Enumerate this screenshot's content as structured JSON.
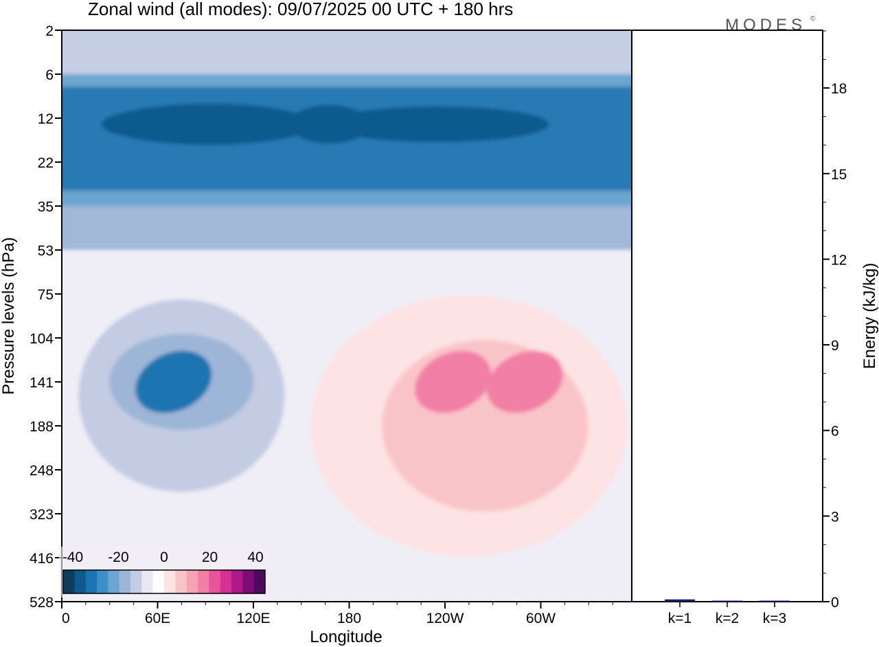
{
  "title": "Zonal wind (all modes):  09/07/2025  00 UTC  + 180 hrs",
  "logo_text": "MODES",
  "logo_mark": "©",
  "chart_data": [
    {
      "type": "heatmap",
      "ylabel": "Pressure levels (hPa)",
      "xlabel": "Longitude",
      "x_ticks": [
        "0",
        "60E",
        "120E",
        "180",
        "120W",
        "60W"
      ],
      "y_ticks": [
        "2",
        "6",
        "12",
        "22",
        "35",
        "53",
        "75",
        "104",
        "141",
        "188",
        "248",
        "323",
        "416",
        "528"
      ],
      "y_scale": "pressure levels (top 2 hPa to bottom 528 hPa)",
      "colorbar": {
        "labels": [
          "-40",
          "-20",
          "0",
          "20",
          "40"
        ],
        "colors": [
          "#0b3d5e",
          "#0e5a8e",
          "#1b74b0",
          "#3a8fc4",
          "#6aa6d0",
          "#9db5d6",
          "#c3cce3",
          "#e8e8f3",
          "#ffffff",
          "#fde3e3",
          "#f9c4c8",
          "#f6a4b4",
          "#f27fa6",
          "#e9559a",
          "#d43193",
          "#b01788",
          "#7d0b78",
          "#4b0a5e"
        ]
      },
      "bands": [
        {
          "from": "2",
          "to": "6",
          "description": "weak easterlies",
          "color": "#c3cce3"
        },
        {
          "from": "6",
          "to": "35",
          "description": "strong easterlies (about -30 to -40)",
          "color": "#1b74b0"
        },
        {
          "from": "35",
          "to": "53",
          "description": "weak easterlies",
          "color": "#9db5d6"
        },
        {
          "from": "53",
          "to": "528",
          "description": "near zero background",
          "color": "#efedf5"
        }
      ],
      "features": [
        {
          "longitude": "about 70E",
          "level": "about 141 hPa",
          "value": "easterly core about -30",
          "color": "#1b74b0"
        },
        {
          "longitude": "about 115W",
          "level": "about 141 hPa",
          "value": "westerly core about +20",
          "color": "#f27fa6"
        },
        {
          "longitude": "about 70W",
          "level": "about 141 hPa",
          "value": "westerly core about +20",
          "color": "#f27fa6"
        }
      ]
    },
    {
      "type": "bar",
      "ylabel": "Energy (kJ/kg)",
      "categories": [
        "k=1",
        "k=2",
        "k=3"
      ],
      "values": [
        0.08,
        0.02,
        0.02
      ],
      "ylim": [
        0,
        20
      ],
      "y_ticks": [
        "0",
        "3",
        "6",
        "9",
        "12",
        "15",
        "18"
      ],
      "bar_color": "#1a1a6e"
    }
  ]
}
